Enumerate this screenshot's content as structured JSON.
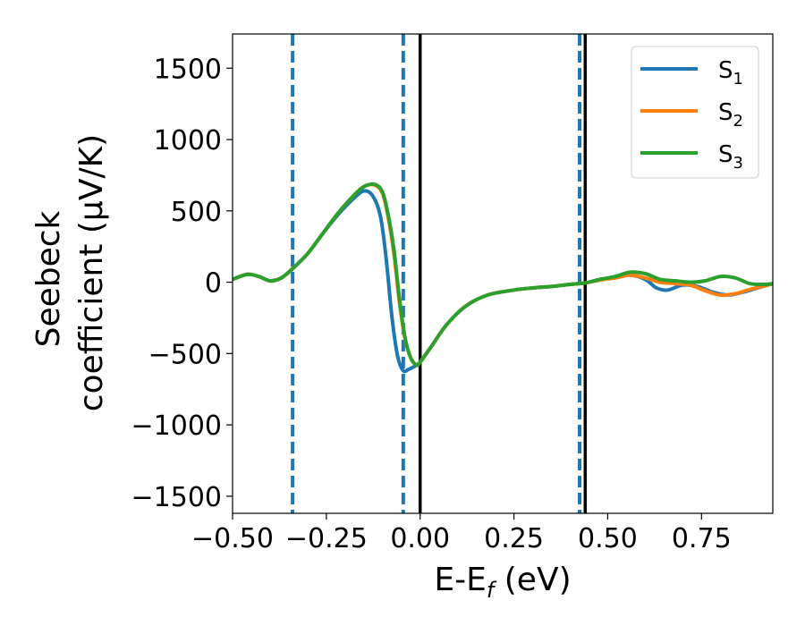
{
  "chart_data": {
    "type": "line",
    "xlabel": "E-E",
    "xlabel_sub": "f",
    "xlabel_unit": " (eV)",
    "ylabel_line1": "Seebeck",
    "ylabel_line2": "coefficient  (μV/K)",
    "xlim": [
      -0.5,
      0.94
    ],
    "ylim": [
      -1620,
      1740
    ],
    "x_ticks": [
      -0.5,
      -0.25,
      0.0,
      0.25,
      0.5,
      0.75
    ],
    "x_tick_labels": [
      "−0.50",
      "−0.25",
      "0.00",
      "0.25",
      "0.50",
      "0.75"
    ],
    "y_ticks": [
      -1500,
      -1000,
      -500,
      0,
      500,
      1000,
      1500
    ],
    "y_tick_labels": [
      "−1500",
      "−1000",
      "−500",
      "0",
      "500",
      "1000",
      "1500"
    ],
    "legend": {
      "position": "top-right"
    },
    "vertical_lines": [
      {
        "x": -0.34,
        "style": "dashed",
        "color": "#1f77b4"
      },
      {
        "x": -0.045,
        "style": "dashed",
        "color": "#1f77b4"
      },
      {
        "x": 0.0,
        "style": "solid",
        "color": "#000000"
      },
      {
        "x": 0.425,
        "style": "dashed",
        "color": "#1f77b4"
      },
      {
        "x": 0.44,
        "style": "solid",
        "color": "#000000"
      }
    ],
    "series": [
      {
        "name": "S",
        "name_sub": "1",
        "color": "#1f77b4",
        "x": [
          -0.5,
          -0.46,
          -0.43,
          -0.4,
          -0.37,
          -0.34,
          -0.3,
          -0.26,
          -0.22,
          -0.18,
          -0.15,
          -0.125,
          -0.105,
          -0.09,
          -0.075,
          -0.06,
          -0.045,
          -0.03,
          -0.015,
          0.0,
          0.03,
          0.07,
          0.12,
          0.18,
          0.25,
          0.3,
          0.35,
          0.4,
          0.44,
          0.48,
          0.52,
          0.56,
          0.6,
          0.63,
          0.66,
          0.7,
          0.74,
          0.78,
          0.82,
          0.86,
          0.9,
          0.94
        ],
        "y": [
          20,
          55,
          40,
          10,
          30,
          95,
          200,
          340,
          470,
          580,
          640,
          600,
          450,
          150,
          -250,
          -520,
          -620,
          -610,
          -590,
          -560,
          -450,
          -300,
          -170,
          -90,
          -55,
          -40,
          -30,
          -15,
          -5,
          20,
          35,
          50,
          20,
          -40,
          -55,
          -20,
          -30,
          -70,
          -90,
          -70,
          -40,
          -10
        ]
      },
      {
        "name": "S",
        "name_sub": "2",
        "color": "#ff7f0e",
        "x": [
          -0.5,
          -0.46,
          -0.43,
          -0.4,
          -0.37,
          -0.34,
          -0.3,
          -0.26,
          -0.22,
          -0.18,
          -0.15,
          -0.12,
          -0.1,
          -0.085,
          -0.07,
          -0.055,
          -0.04,
          -0.025,
          -0.01,
          0.0,
          0.03,
          0.07,
          0.12,
          0.18,
          0.25,
          0.3,
          0.35,
          0.4,
          0.44,
          0.48,
          0.52,
          0.56,
          0.6,
          0.64,
          0.68,
          0.72,
          0.76,
          0.8,
          0.84,
          0.88,
          0.92,
          0.94
        ],
        "y": [
          20,
          55,
          40,
          10,
          30,
          95,
          200,
          340,
          480,
          600,
          670,
          680,
          620,
          450,
          200,
          -150,
          -400,
          -530,
          -580,
          -560,
          -450,
          -300,
          -170,
          -90,
          -55,
          -40,
          -30,
          -15,
          -5,
          15,
          30,
          50,
          30,
          0,
          -10,
          -20,
          -60,
          -90,
          -80,
          -50,
          -25,
          -10
        ]
      },
      {
        "name": "S",
        "name_sub": "3",
        "color": "#2ca02c",
        "x": [
          -0.5,
          -0.46,
          -0.43,
          -0.4,
          -0.37,
          -0.34,
          -0.3,
          -0.26,
          -0.22,
          -0.18,
          -0.15,
          -0.12,
          -0.1,
          -0.085,
          -0.07,
          -0.055,
          -0.04,
          -0.025,
          -0.01,
          0.0,
          0.03,
          0.07,
          0.12,
          0.18,
          0.25,
          0.3,
          0.35,
          0.4,
          0.44,
          0.48,
          0.52,
          0.56,
          0.6,
          0.64,
          0.68,
          0.72,
          0.76,
          0.8,
          0.84,
          0.88,
          0.92,
          0.94
        ],
        "y": [
          20,
          55,
          40,
          10,
          30,
          95,
          200,
          340,
          480,
          600,
          670,
          685,
          630,
          470,
          230,
          -120,
          -390,
          -530,
          -580,
          -560,
          -450,
          -300,
          -170,
          -90,
          -55,
          -40,
          -30,
          -15,
          -5,
          20,
          40,
          70,
          60,
          20,
          10,
          0,
          10,
          40,
          30,
          -10,
          -15,
          -10
        ]
      }
    ]
  }
}
